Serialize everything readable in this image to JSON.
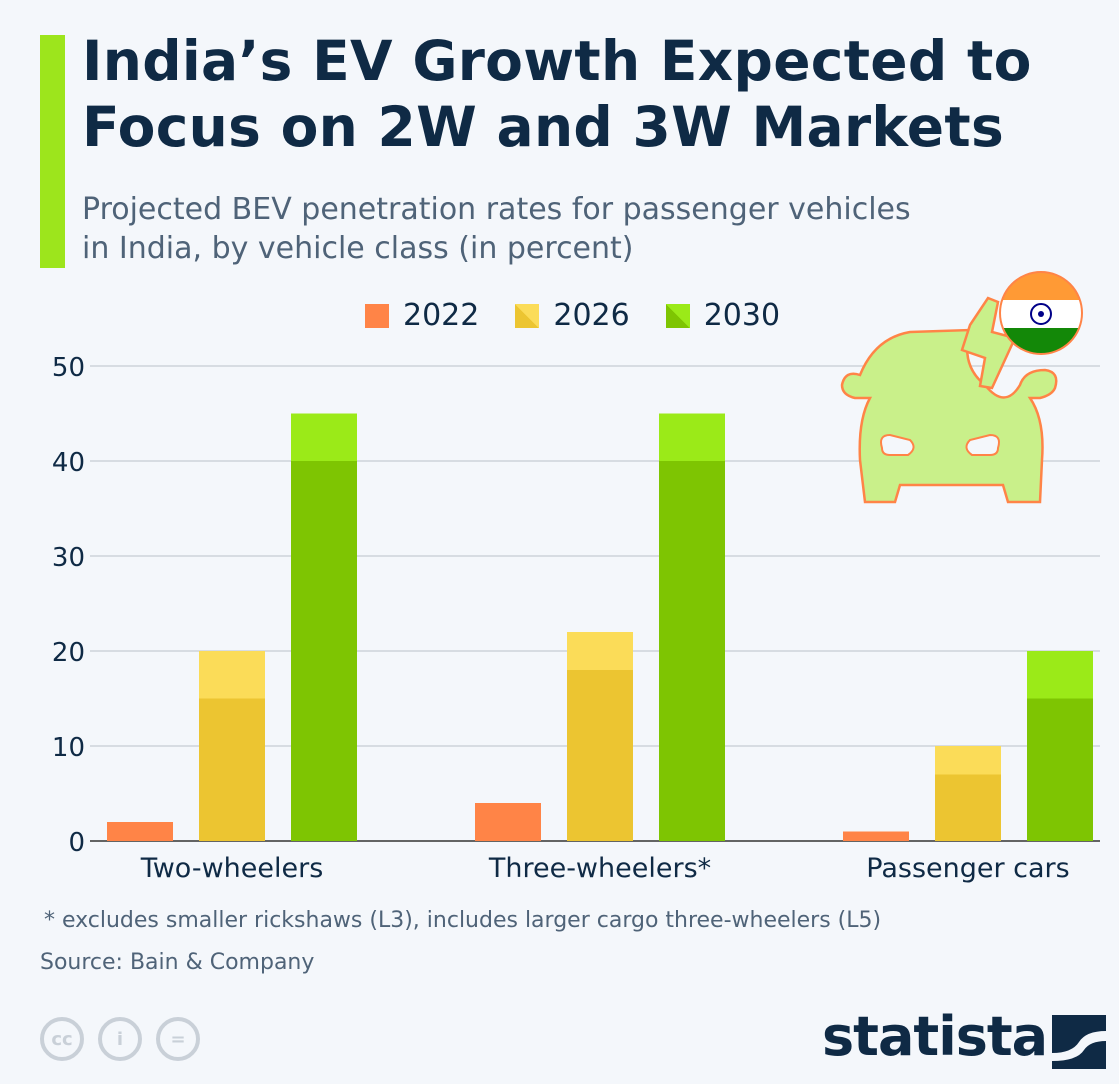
{
  "title_line1": "India’s EV Growth Expected to",
  "title_line2": "Focus on 2W and 3W Markets",
  "subtitle_line1": "Projected BEV penetration rates for passenger vehicles",
  "subtitle_line2": "in India, by vehicle class (in percent)",
  "footnote": "* excludes smaller rickshaws (L3), includes larger cargo three-wheelers (L5)",
  "source": "Source: Bain & Company",
  "brand": "statista",
  "license_icons": [
    "cc-icon",
    "attribution-icon",
    "no-derivatives-icon"
  ],
  "colors": {
    "c2022": "#ff8447",
    "c2026_low": "#ecc531",
    "c2026_high": "#fbdc58",
    "c2030_low": "#7ec502",
    "c2030_high": "#9bea18",
    "accent": "#9de51c",
    "title": "#0f2a45"
  },
  "chart_data": {
    "type": "bar",
    "title": "India’s EV Growth Expected to Focus on 2W and 3W Markets",
    "ylabel": "percent",
    "ylim": [
      0,
      50
    ],
    "yticks": [
      0,
      10,
      20,
      30,
      40,
      50
    ],
    "yticks_labels": [
      "0",
      "10",
      "20",
      "30",
      "40",
      "50"
    ],
    "grid": true,
    "legend_position": "top",
    "categories": [
      "Two-wheelers",
      "Three-wheelers*",
      "Passenger cars"
    ],
    "series": [
      {
        "name": "2022",
        "values": [
          2,
          4,
          1
        ]
      },
      {
        "name": "2026",
        "low": [
          15,
          18,
          7
        ],
        "high": [
          20,
          22,
          10
        ]
      },
      {
        "name": "2030",
        "low": [
          40,
          40,
          15
        ],
        "high": [
          45,
          45,
          20
        ]
      }
    ]
  }
}
